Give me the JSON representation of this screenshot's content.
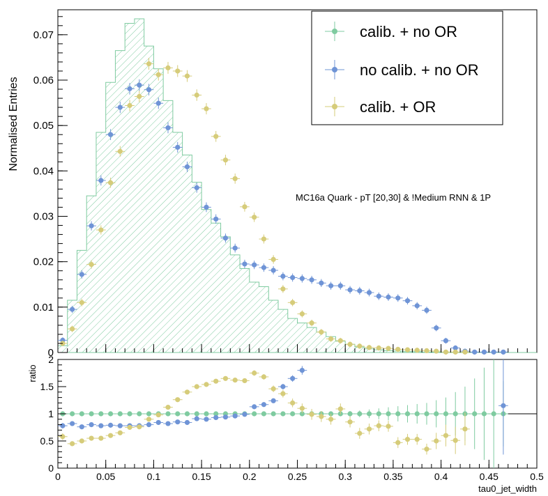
{
  "colors": {
    "calib_no_or": "#7fcba0",
    "no_calib_no_or": "#6f94d6",
    "calib_or": "#d6cc7a",
    "frame": "#000000",
    "hatch": "#7fcba0"
  },
  "annotation": "MC16a Quark - pT [20,30] & !Medium RNN & 1P",
  "chart_data": [
    {
      "type": "bar",
      "panel": "main",
      "xlabel": "tau0_jet_width",
      "ylabel": "Normalised Entries",
      "xlim": [
        0,
        0.5
      ],
      "ylim": [
        0,
        0.0755
      ],
      "yticks": [
        "0",
        "0.01",
        "0.02",
        "0.03",
        "0.04",
        "0.05",
        "0.06",
        "0.07"
      ],
      "ytick_values": [
        0,
        0.01,
        0.02,
        0.03,
        0.04,
        0.05,
        0.06,
        0.07
      ],
      "legend": {
        "position": "top-right",
        "entries": [
          "calib. + no OR",
          "no calib. + no OR",
          "calib. + OR"
        ]
      },
      "bin_width": 0.01,
      "series": [
        {
          "name": "calib. + no OR",
          "style": "hatched-histogram",
          "x": [
            0.005,
            0.015,
            0.025,
            0.035,
            0.045,
            0.055,
            0.065,
            0.075,
            0.085,
            0.095,
            0.105,
            0.115,
            0.125,
            0.135,
            0.145,
            0.155,
            0.165,
            0.175,
            0.185,
            0.195,
            0.205,
            0.215,
            0.225,
            0.235,
            0.245,
            0.255,
            0.265,
            0.275,
            0.285,
            0.295,
            0.305,
            0.315,
            0.325,
            0.335,
            0.345,
            0.355,
            0.365,
            0.375,
            0.385,
            0.395,
            0.405,
            0.415,
            0.425,
            0.435,
            0.445,
            0.455,
            0.465,
            0.475,
            0.485,
            0.495
          ],
          "values": [
            0.0015,
            0.0115,
            0.0225,
            0.0345,
            0.0485,
            0.0595,
            0.0665,
            0.0725,
            0.0735,
            0.0675,
            0.0625,
            0.0555,
            0.0485,
            0.0435,
            0.0375,
            0.0315,
            0.0285,
            0.0255,
            0.0215,
            0.0185,
            0.0155,
            0.0145,
            0.0115,
            0.0095,
            0.0075,
            0.0065,
            0.0055,
            0.0045,
            0.0035,
            0.0025,
            0.0018,
            0.0012,
            0.0008,
            0.0006,
            0.0004,
            0.0003,
            0.0002,
            0.0002,
            0.0001,
            0.0001,
            0.0001,
            0,
            0,
            0,
            0,
            0,
            0,
            0,
            0,
            0
          ]
        },
        {
          "name": "no calib. + no OR",
          "style": "markers",
          "x": [
            0.005,
            0.015,
            0.025,
            0.035,
            0.045,
            0.055,
            0.065,
            0.075,
            0.085,
            0.095,
            0.105,
            0.115,
            0.125,
            0.135,
            0.145,
            0.155,
            0.165,
            0.175,
            0.185,
            0.195,
            0.205,
            0.215,
            0.225,
            0.235,
            0.245,
            0.255,
            0.265,
            0.275,
            0.285,
            0.295,
            0.305,
            0.315,
            0.325,
            0.335,
            0.345,
            0.355,
            0.365,
            0.375,
            0.385,
            0.395,
            0.405,
            0.415,
            0.425,
            0.435,
            0.445,
            0.455,
            0.465
          ],
          "values": [
            0.0027,
            0.0095,
            0.0172,
            0.0279,
            0.0379,
            0.048,
            0.054,
            0.0581,
            0.0589,
            0.0579,
            0.0549,
            0.0495,
            0.0452,
            0.0409,
            0.0363,
            0.032,
            0.0294,
            0.0252,
            0.023,
            0.0195,
            0.0193,
            0.0187,
            0.0181,
            0.0168,
            0.0165,
            0.0163,
            0.016,
            0.0153,
            0.0147,
            0.0147,
            0.0138,
            0.0136,
            0.0132,
            0.0124,
            0.0122,
            0.012,
            0.0114,
            0.0103,
            0.0093,
            0.0054,
            0.0026,
            0.001,
            0.0003,
            0.0001,
            0.0001,
            0.0001,
            0.0001
          ]
        },
        {
          "name": "calib. + OR",
          "style": "markers",
          "x": [
            0.005,
            0.015,
            0.025,
            0.035,
            0.045,
            0.055,
            0.065,
            0.075,
            0.085,
            0.095,
            0.105,
            0.115,
            0.125,
            0.135,
            0.145,
            0.155,
            0.165,
            0.175,
            0.185,
            0.195,
            0.205,
            0.215,
            0.225,
            0.235,
            0.245,
            0.255,
            0.265,
            0.275,
            0.285,
            0.295,
            0.305,
            0.315,
            0.325,
            0.335,
            0.345,
            0.355,
            0.365,
            0.375,
            0.385,
            0.395,
            0.405,
            0.415,
            0.425
          ],
          "values": [
            0.002,
            0.0052,
            0.011,
            0.0194,
            0.027,
            0.0374,
            0.0443,
            0.0544,
            0.0564,
            0.0636,
            0.0612,
            0.0627,
            0.062,
            0.0609,
            0.0567,
            0.0537,
            0.0476,
            0.0424,
            0.0383,
            0.0321,
            0.0298,
            0.025,
            0.0205,
            0.014,
            0.011,
            0.0085,
            0.0065,
            0.0045,
            0.003,
            0.0026,
            0.0018,
            0.0014,
            0.0011,
            0.001,
            0.0009,
            0.0007,
            0.0006,
            0.0005,
            0.0004,
            0.0003,
            0.0001,
            0.0001,
            0.0001
          ]
        }
      ]
    },
    {
      "type": "scatter",
      "panel": "ratio",
      "xlabel": "tau0_jet_width",
      "ylabel": "ratio",
      "xlim": [
        0,
        0.5
      ],
      "ylim": [
        0,
        2
      ],
      "xticks": [
        "0",
        "0.05",
        "0.1",
        "0.15",
        "0.2",
        "0.25",
        "0.3",
        "0.35",
        "0.4",
        "0.45",
        "0.5"
      ],
      "xtick_values": [
        0,
        0.05,
        0.1,
        0.15,
        0.2,
        0.25,
        0.3,
        0.35,
        0.4,
        0.45,
        0.5
      ],
      "yticks": [
        "0",
        "0.5",
        "1",
        "1.5",
        "2"
      ],
      "ytick_values": [
        0,
        0.5,
        1,
        1.5,
        2
      ],
      "reference_line": 1,
      "series": [
        {
          "name": "calib. + no OR",
          "x": [
            0.005,
            0.015,
            0.025,
            0.035,
            0.045,
            0.055,
            0.065,
            0.075,
            0.085,
            0.095,
            0.105,
            0.115,
            0.125,
            0.135,
            0.145,
            0.155,
            0.165,
            0.175,
            0.185,
            0.195,
            0.205,
            0.215,
            0.225,
            0.235,
            0.245,
            0.255,
            0.265,
            0.275,
            0.285,
            0.295,
            0.305,
            0.315,
            0.325,
            0.335,
            0.345,
            0.355,
            0.365,
            0.375,
            0.385,
            0.395,
            0.405,
            0.415,
            0.425,
            0.435,
            0.445,
            0.455,
            0.465
          ],
          "values": [
            1,
            1,
            1,
            1,
            1,
            1,
            1,
            1,
            1,
            1,
            1,
            1,
            1,
            1,
            1,
            1,
            1,
            1,
            1,
            1,
            1,
            1,
            1,
            1,
            1,
            1,
            1,
            1,
            1,
            1,
            1,
            1,
            1,
            1,
            1,
            1,
            1,
            1,
            1,
            1,
            1,
            1,
            1,
            1,
            1,
            1,
            1
          ],
          "errors": [
            0.02,
            0.01,
            0.01,
            0.01,
            0.01,
            0.01,
            0.01,
            0.01,
            0.01,
            0.01,
            0.01,
            0.01,
            0.01,
            0.01,
            0.01,
            0.01,
            0.01,
            0.01,
            0.01,
            0.01,
            0.01,
            0.01,
            0.01,
            0.01,
            0.01,
            0.02,
            0.02,
            0.02,
            0.03,
            0.04,
            0.05,
            0.06,
            0.08,
            0.1,
            0.12,
            0.14,
            0.16,
            0.18,
            0.2,
            0.25,
            0.3,
            0.4,
            0.5,
            0.65,
            0.85,
            1.1,
            0.6
          ]
        },
        {
          "name": "no calib. + no OR",
          "x": [
            0.005,
            0.015,
            0.025,
            0.035,
            0.045,
            0.055,
            0.065,
            0.075,
            0.085,
            0.095,
            0.105,
            0.115,
            0.125,
            0.135,
            0.145,
            0.155,
            0.165,
            0.175,
            0.185,
            0.195,
            0.205,
            0.215,
            0.225,
            0.235,
            0.245,
            0.255,
            0.465
          ],
          "values": [
            0.78,
            0.82,
            0.76,
            0.8,
            0.78,
            0.79,
            0.78,
            0.78,
            0.78,
            0.8,
            0.84,
            0.82,
            0.85,
            0.84,
            0.91,
            0.9,
            0.93,
            0.94,
            0.96,
            0.99,
            1.13,
            1.17,
            1.24,
            1.5,
            1.65,
            1.8,
            1.15
          ],
          "errors": [
            0.05,
            0.03,
            0.02,
            0.02,
            0.02,
            0.02,
            0.02,
            0.02,
            0.02,
            0.02,
            0.02,
            0.02,
            0.02,
            0.02,
            0.02,
            0.02,
            0.02,
            0.02,
            0.03,
            0.03,
            0.03,
            0.03,
            0.04,
            0.05,
            0.06,
            0.08,
            0.9
          ]
        },
        {
          "name": "calib. + OR",
          "x": [
            0.005,
            0.015,
            0.025,
            0.035,
            0.045,
            0.055,
            0.065,
            0.075,
            0.085,
            0.095,
            0.105,
            0.115,
            0.125,
            0.135,
            0.145,
            0.155,
            0.165,
            0.175,
            0.185,
            0.195,
            0.205,
            0.215,
            0.225,
            0.235,
            0.245,
            0.255,
            0.265,
            0.275,
            0.285,
            0.295,
            0.305,
            0.315,
            0.325,
            0.335,
            0.345,
            0.355,
            0.365,
            0.375,
            0.385,
            0.395,
            0.405,
            0.415,
            0.425
          ],
          "values": [
            0.58,
            0.45,
            0.5,
            0.55,
            0.55,
            0.6,
            0.65,
            0.75,
            0.76,
            0.9,
            0.98,
            1.12,
            1.26,
            1.4,
            1.5,
            1.54,
            1.6,
            1.65,
            1.62,
            1.61,
            1.75,
            1.68,
            1.46,
            1.37,
            1.2,
            1.1,
            0.99,
            0.95,
            0.9,
            1.09,
            0.85,
            0.64,
            0.72,
            0.78,
            0.77,
            0.47,
            0.53,
            0.53,
            0.35,
            0.5,
            0.6,
            0.51,
            0.72
          ],
          "errors": [
            0.06,
            0.04,
            0.03,
            0.03,
            0.03,
            0.03,
            0.03,
            0.03,
            0.03,
            0.03,
            0.03,
            0.03,
            0.03,
            0.03,
            0.03,
            0.03,
            0.03,
            0.03,
            0.04,
            0.04,
            0.05,
            0.05,
            0.06,
            0.07,
            0.08,
            0.09,
            0.1,
            0.1,
            0.1,
            0.1,
            0.1,
            0.1,
            0.1,
            0.1,
            0.1,
            0.1,
            0.1,
            0.1,
            0.1,
            0.15,
            0.2,
            0.25,
            0.3
          ]
        }
      ]
    }
  ]
}
